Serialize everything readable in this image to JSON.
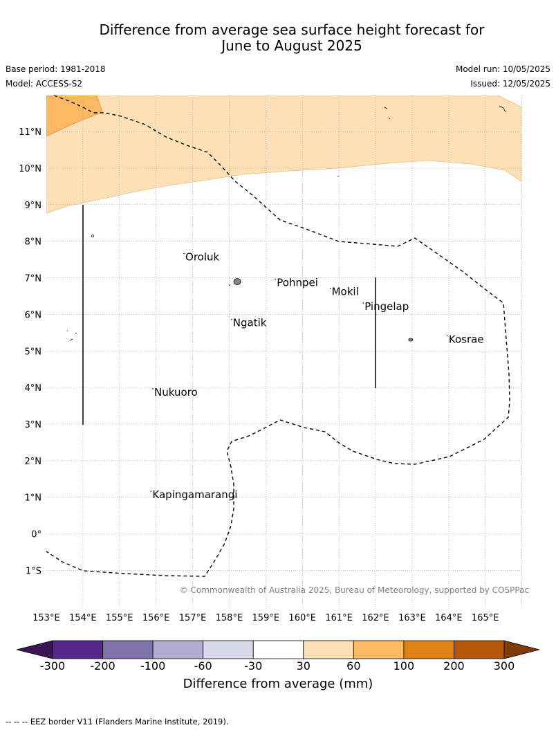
{
  "title": {
    "line1": "Difference from average sea surface height forecast for",
    "line2": "June to August 2025"
  },
  "meta": {
    "base_period": "Base period: 1981-2018",
    "model": "Model: ACCESS-S2",
    "model_run": "Model run: 10/05/2025",
    "issued": "Issued: 12/05/2025"
  },
  "map": {
    "lat_labels": [
      "11°N",
      "10°N",
      "9°N",
      "8°N",
      "7°N",
      "6°N",
      "5°N",
      "4°N",
      "3°N",
      "2°N",
      "1°N",
      "0°",
      "1°S"
    ],
    "lon_labels": [
      "153°E",
      "154°E",
      "155°E",
      "156°E",
      "157°E",
      "158°E",
      "159°E",
      "160°E",
      "161°E",
      "162°E",
      "163°E",
      "164°E",
      "165°E"
    ],
    "places": [
      {
        "name": "Oroluk",
        "lon": 155.8,
        "lat": 7.55
      },
      {
        "name": "Pohnpei",
        "lon": 158.3,
        "lat": 6.85
      },
      {
        "name": "Mokil",
        "lon": 159.8,
        "lat": 6.6
      },
      {
        "name": "Pingelap",
        "lon": 160.7,
        "lat": 6.2
      },
      {
        "name": "Ngatik",
        "lon": 157.1,
        "lat": 5.75
      },
      {
        "name": "Kosrae",
        "lon": 163.0,
        "lat": 5.3
      },
      {
        "name": "Nukuoro",
        "lon": 154.95,
        "lat": 3.85
      },
      {
        "name": "Kapingamarangi",
        "lon": 154.9,
        "lat": 1.05
      }
    ],
    "copyright": "© Commonwealth of Australia 2025, Bureau of Meteorology, supported by COSPPac"
  },
  "colorbar": {
    "title": "Difference from average (mm)",
    "ticks": [
      "-300",
      "-200",
      "-100",
      "-60",
      "-30",
      "30",
      "60",
      "100",
      "200",
      "300"
    ],
    "colors": [
      "#3d1454",
      "#542788",
      "#8073ac",
      "#b2abd2",
      "#d8daeb",
      "#ffffff",
      "#fee0b6",
      "#fdb863",
      "#e08214",
      "#b35806",
      "#7f3b08"
    ]
  },
  "footnote": "--  --  -- EEZ border V11 (Flanders Marine Institute, 2019)."
}
